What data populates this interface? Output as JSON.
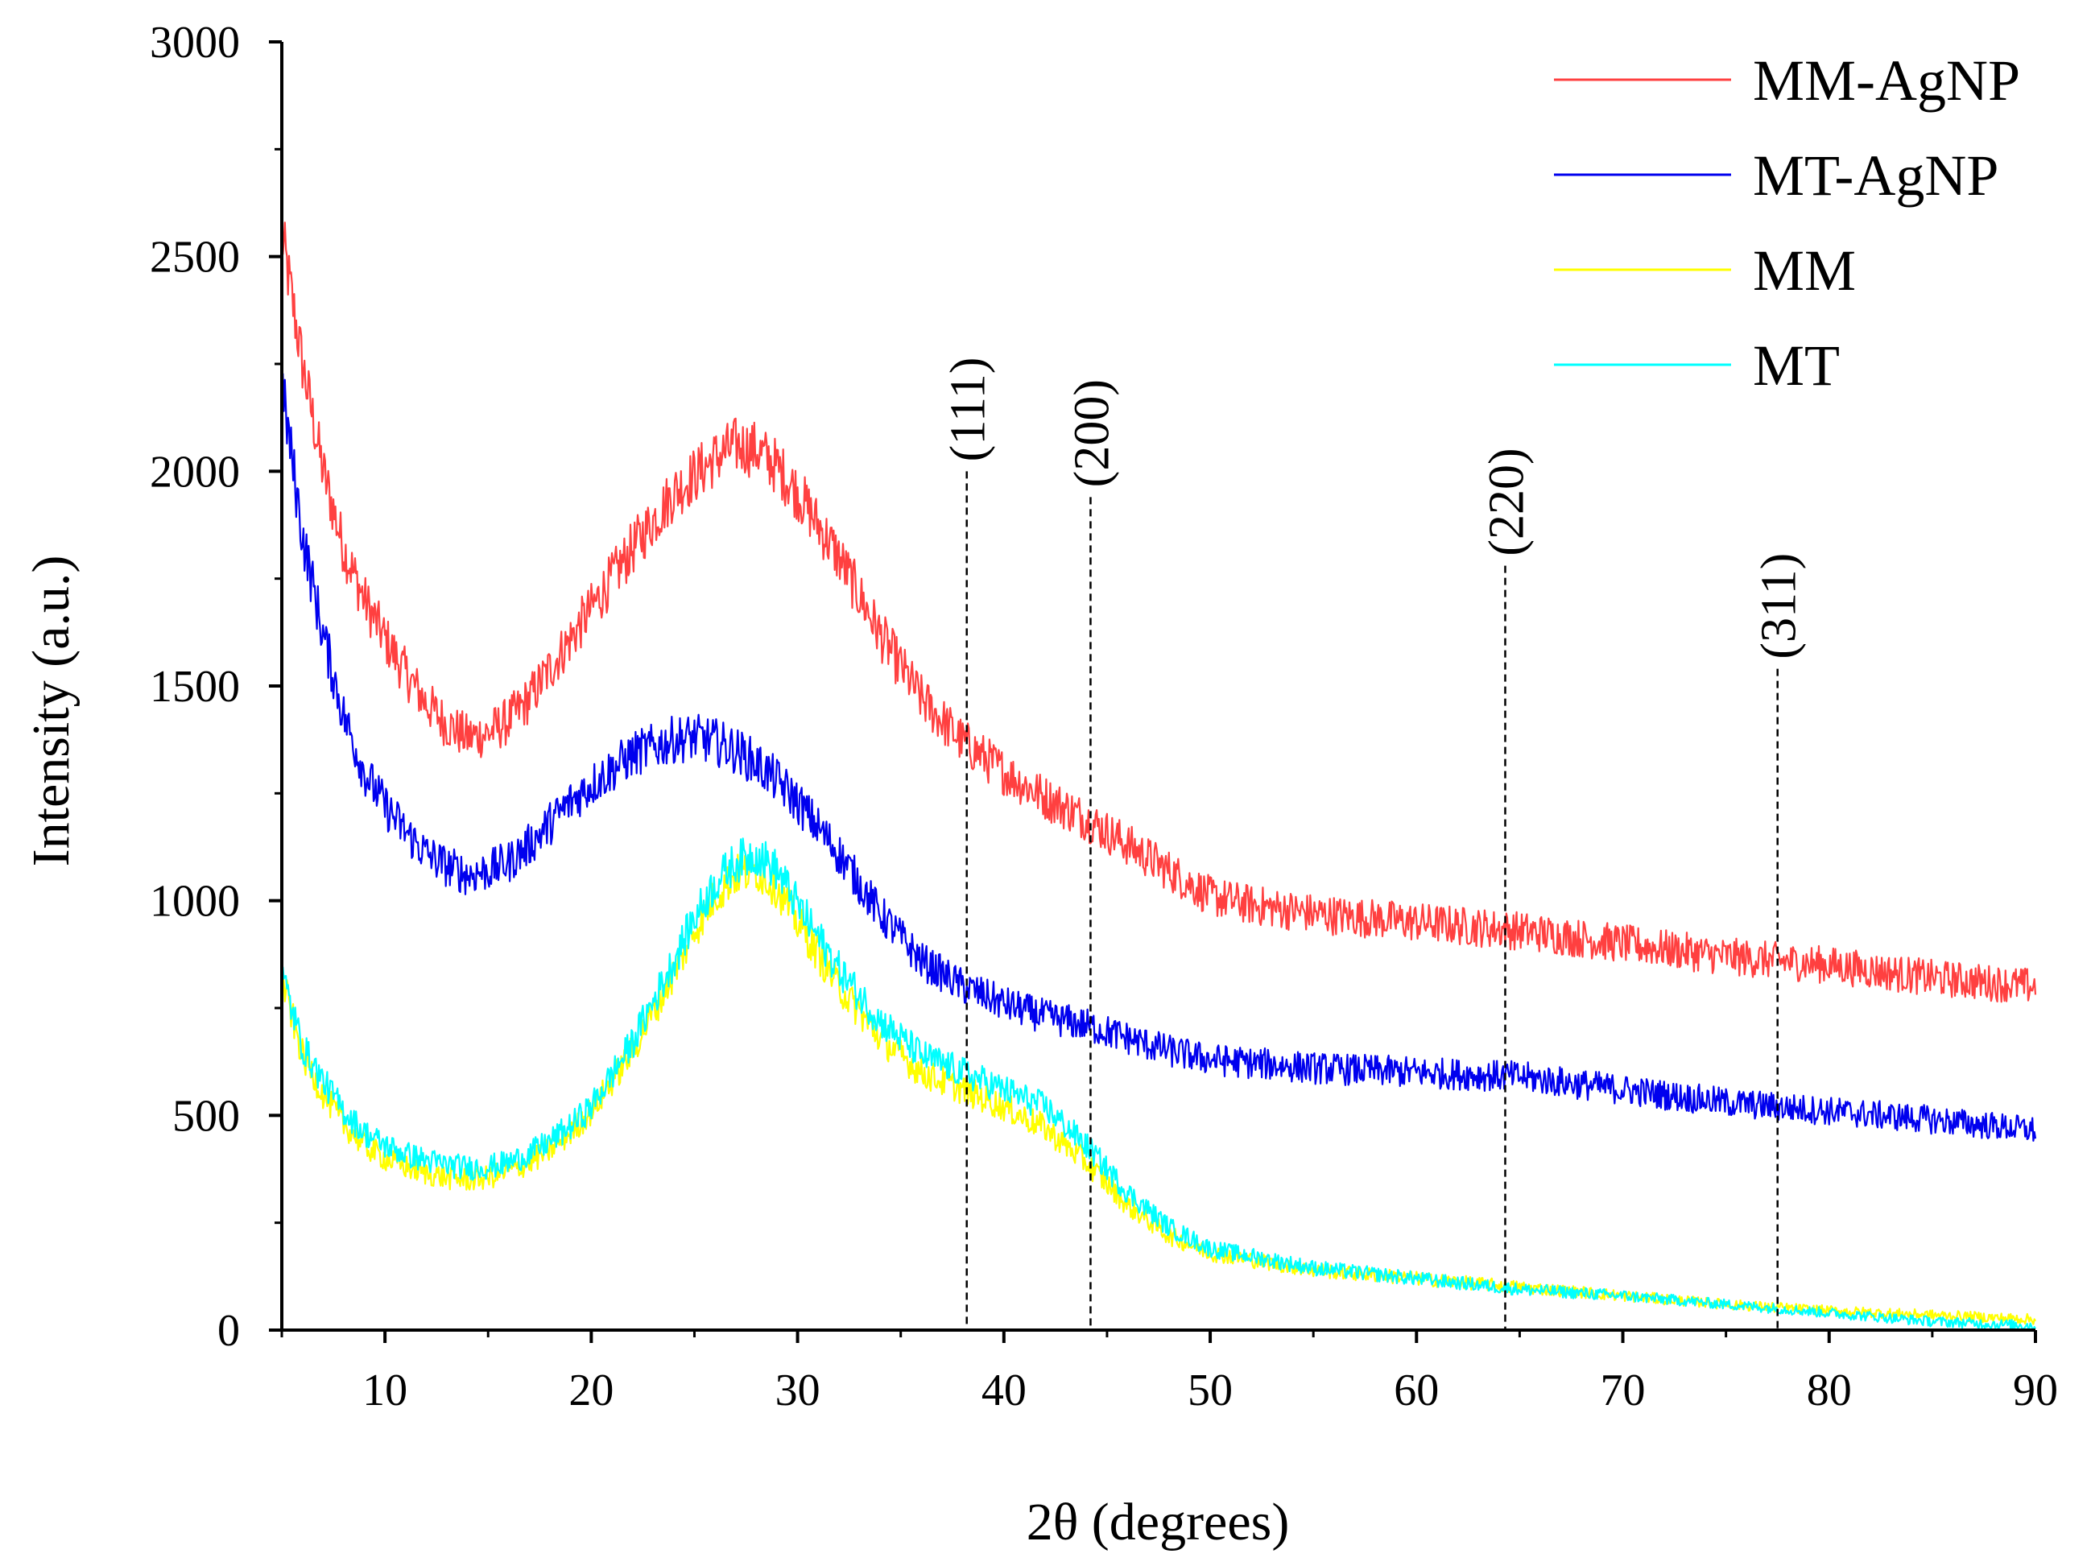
{
  "chart_data": {
    "type": "line",
    "title": "",
    "xlabel": "2θ (degrees)",
    "ylabel": "Intensity (a.u.)",
    "xlim": [
      5,
      90
    ],
    "ylim": [
      0,
      3000
    ],
    "x_ticks": [
      10,
      20,
      30,
      40,
      50,
      60,
      70,
      80,
      90
    ],
    "x_tick_labels": [
      "10",
      "20",
      "30",
      "40",
      "50",
      "60",
      "70",
      "80",
      "90"
    ],
    "y_ticks": [
      0,
      500,
      1000,
      1500,
      2000,
      2500,
      3000
    ],
    "y_tick_labels": [
      "0",
      "500",
      "1000",
      "1500",
      "2000",
      "2500",
      "3000"
    ],
    "grid": false,
    "legend_position": "top-right",
    "series": [
      {
        "name": "MM-AgNP",
        "color": "#ff4040",
        "x": [
          5,
          6,
          7,
          8,
          9,
          10,
          11,
          12,
          13,
          14,
          15,
          16,
          17,
          18,
          19,
          20,
          22,
          24,
          26,
          27,
          28,
          29,
          30,
          32,
          34,
          36,
          38,
          40,
          42,
          44,
          46,
          48,
          50,
          52,
          55,
          60,
          65,
          70,
          75,
          80,
          85,
          90
        ],
        "y": [
          2550,
          2250,
          2000,
          1820,
          1700,
          1610,
          1530,
          1460,
          1410,
          1380,
          1390,
          1420,
          1470,
          1540,
          1610,
          1680,
          1820,
          1950,
          2030,
          2060,
          2050,
          2010,
          1950,
          1800,
          1620,
          1470,
          1370,
          1300,
          1240,
          1190,
          1130,
          1070,
          1010,
          990,
          970,
          950,
          930,
          900,
          870,
          850,
          820,
          800
        ]
      },
      {
        "name": "MT-AgNP",
        "color": "#0000ee",
        "x": [
          5,
          6,
          7,
          8,
          9,
          10,
          11,
          12,
          13,
          14,
          15,
          16,
          17,
          18,
          19,
          20,
          22,
          24,
          25,
          26,
          27,
          28,
          29,
          30,
          32,
          34,
          36,
          38,
          40,
          42,
          44,
          46,
          48,
          50,
          55,
          60,
          65,
          70,
          75,
          80,
          85,
          90
        ],
        "y": [
          2200,
          1850,
          1620,
          1430,
          1300,
          1220,
          1160,
          1110,
          1080,
          1060,
          1070,
          1090,
          1130,
          1180,
          1230,
          1270,
          1340,
          1375,
          1380,
          1370,
          1350,
          1320,
          1280,
          1230,
          1110,
          970,
          860,
          800,
          760,
          730,
          710,
          680,
          650,
          630,
          610,
          600,
          590,
          560,
          530,
          510,
          490,
          465
        ]
      },
      {
        "name": "MM",
        "color": "#ffff00",
        "x": [
          5,
          6,
          7,
          8,
          9,
          10,
          11,
          12,
          13,
          14,
          15,
          16,
          17,
          18,
          19,
          20,
          22,
          24,
          25,
          26,
          27,
          28,
          29,
          30,
          32,
          34,
          36,
          38,
          40,
          42,
          44,
          46,
          48,
          50,
          55,
          60,
          65,
          70,
          75,
          80,
          85,
          90
        ],
        "y": [
          820,
          640,
          550,
          480,
          430,
          400,
          380,
          365,
          355,
          350,
          355,
          370,
          390,
          420,
          460,
          510,
          650,
          830,
          930,
          1010,
          1060,
          1070,
          1030,
          950,
          800,
          680,
          600,
          560,
          520,
          470,
          390,
          290,
          220,
          180,
          140,
          120,
          100,
          80,
          60,
          45,
          35,
          25
        ]
      },
      {
        "name": "MT",
        "color": "#00ffff",
        "x": [
          5,
          6,
          7,
          8,
          9,
          10,
          11,
          12,
          13,
          14,
          15,
          16,
          17,
          18,
          19,
          20,
          22,
          24,
          25,
          26,
          27,
          28,
          29,
          30,
          32,
          34,
          36,
          38,
          40,
          42,
          44,
          46,
          48,
          50,
          55,
          60,
          65,
          70,
          75,
          80,
          85,
          90
        ],
        "y": [
          830,
          660,
          580,
          510,
          460,
          430,
          410,
          395,
          385,
          378,
          380,
          390,
          410,
          440,
          475,
          520,
          670,
          860,
          960,
          1040,
          1090,
          1110,
          1070,
          990,
          840,
          720,
          640,
          600,
          560,
          520,
          430,
          320,
          240,
          190,
          145,
          120,
          95,
          80,
          60,
          40,
          20,
          10
        ]
      }
    ],
    "reference_lines": [
      {
        "x": 38.2,
        "y_top": 2000,
        "label": "(111)"
      },
      {
        "x": 44.2,
        "y_top": 1940,
        "label": "(200)"
      },
      {
        "x": 64.3,
        "y_top": 1780,
        "label": "(220)"
      },
      {
        "x": 77.5,
        "y_top": 1540,
        "label": "(311)"
      }
    ]
  }
}
